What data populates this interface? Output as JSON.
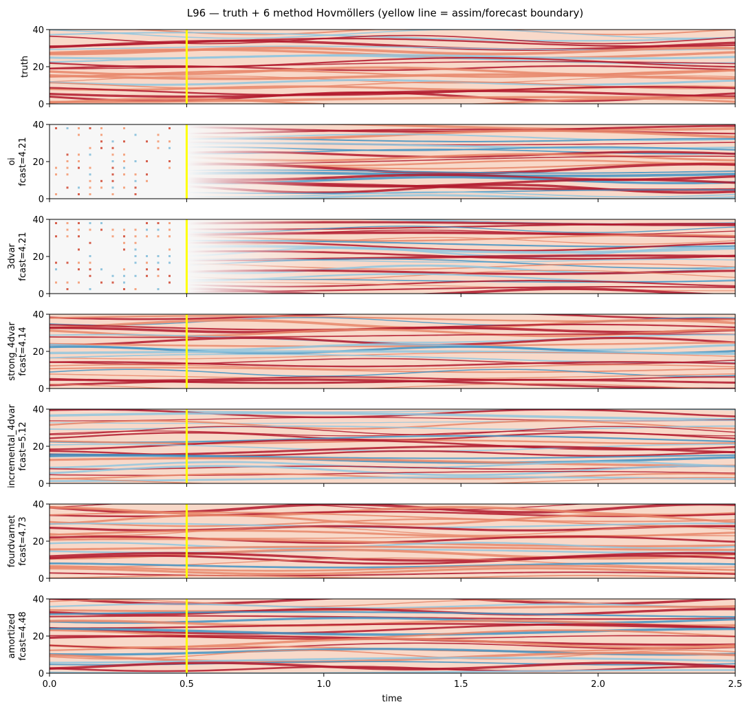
{
  "chart_data": {
    "type": "heatmap",
    "title": "L96 — truth + 6 method Hovmöllers (yellow line = assim/forecast boundary)",
    "xlabel": "time",
    "xlim": [
      0,
      2.5
    ],
    "ylim": [
      0,
      40
    ],
    "x_ticks": [
      "0.0",
      "0.5",
      "1.0",
      "1.5",
      "2.0",
      "2.5"
    ],
    "x_tick_values": [
      0,
      0.5,
      1.0,
      1.5,
      2.0,
      2.5
    ],
    "y_ticks": [
      "0",
      "20",
      "40"
    ],
    "y_tick_values": [
      0,
      20,
      40
    ],
    "colormap": "RdBu_r",
    "boundary_time": 0.5,
    "boundary_color": "#ffff00",
    "panels": [
      {
        "name": "truth",
        "label_lines": [
          "truth"
        ]
      },
      {
        "name": "oi",
        "label_lines": [
          "oi",
          "fcast=4.21"
        ],
        "fcast": 4.21
      },
      {
        "name": "3dvar",
        "label_lines": [
          "3dvar",
          "fcast=4.21"
        ],
        "fcast": 4.21
      },
      {
        "name": "strong_4dvar",
        "label_lines": [
          "strong_4dvar",
          "fcast=4.14"
        ],
        "fcast": 4.14
      },
      {
        "name": "incremental_4dvar",
        "label_lines": [
          "incremental_4dvar",
          "fcast=5.12"
        ],
        "fcast": 5.12
      },
      {
        "name": "fourdvarnet",
        "label_lines": [
          "fourdvarnet",
          "fcast=4.73"
        ],
        "fcast": 4.73
      },
      {
        "name": "amortized",
        "label_lines": [
          "amortized",
          "fcast=4.48"
        ],
        "fcast": 4.48
      }
    ]
  }
}
